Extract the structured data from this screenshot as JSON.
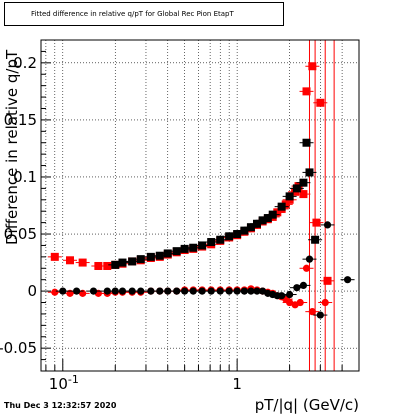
{
  "title": "Fitted difference in relative q/pT for Global Rec Pion EtapT",
  "footer": "Thu Dec  3 12:32:57 2020",
  "chart_data": {
    "type": "scatter",
    "title": "Fitted difference in relative q/pT for Global Rec Pion EtapT",
    "xlabel": "pT/|q| (GeV/c)",
    "ylabel": "Difference in relative q/pT",
    "xscale": "log",
    "xlim": [
      0.075,
      5.0
    ],
    "ylim": [
      -0.07,
      0.22
    ],
    "x_tick_labels": [
      "10^-1",
      "1"
    ],
    "y_ticks": [
      -0.05,
      0,
      0.05,
      0.1,
      0.15,
      0.2
    ],
    "y_tick_labels": [
      "-0.05",
      "0",
      "0.05",
      "0.1",
      "0.15",
      "0.2"
    ],
    "grid": true,
    "colors": {
      "red": "#ff0000",
      "black": "#000000"
    },
    "vertical_lines": {
      "color": "#ff0000",
      "x": [
        2.6,
        2.8,
        3.2,
        3.6
      ]
    },
    "series": [
      {
        "marker": "square",
        "color": "#ff0000",
        "x": [
          0.09,
          0.11,
          0.13,
          0.16,
          0.18,
          0.2,
          0.22,
          0.25,
          0.28,
          0.32,
          0.36,
          0.4,
          0.45,
          0.5,
          0.56,
          0.63,
          0.71,
          0.8,
          0.9,
          1.0,
          1.1,
          1.2,
          1.3,
          1.4,
          1.5,
          1.6,
          1.7,
          1.8,
          1.9,
          2.0,
          2.15,
          2.25,
          2.4,
          2.5,
          2.7,
          2.85,
          3.0,
          3.3
        ],
        "y": [
          0.03,
          0.027,
          0.025,
          0.022,
          0.022,
          0.023,
          0.024,
          0.026,
          0.027,
          0.029,
          0.03,
          0.032,
          0.034,
          0.036,
          0.037,
          0.039,
          0.041,
          0.044,
          0.047,
          0.049,
          0.052,
          0.055,
          0.058,
          0.061,
          0.063,
          0.065,
          0.069,
          0.072,
          0.076,
          0.08,
          0.087,
          0.092,
          0.085,
          0.175,
          0.197,
          0.06,
          0.165,
          0.009
        ]
      },
      {
        "marker": "circle",
        "color": "#ff0000",
        "x": [
          0.09,
          0.11,
          0.13,
          0.16,
          0.18,
          0.2,
          0.22,
          0.25,
          0.28,
          0.32,
          0.36,
          0.4,
          0.45,
          0.5,
          0.56,
          0.63,
          0.71,
          0.8,
          0.9,
          1.0,
          1.1,
          1.2,
          1.3,
          1.4,
          1.5,
          1.6,
          1.7,
          1.8,
          1.9,
          2.0,
          2.15,
          2.3,
          2.5,
          2.7,
          3.2
        ],
        "y": [
          -0.001,
          -0.002,
          -0.002,
          -0.002,
          -0.002,
          -0.001,
          -0.001,
          -0.001,
          -0.001,
          0.0,
          0.0,
          0.0,
          0.0,
          0.001,
          0.001,
          0.001,
          0.001,
          0.001,
          0.001,
          0.001,
          0.001,
          0.002,
          0.001,
          0.0,
          -0.001,
          -0.002,
          -0.004,
          -0.005,
          -0.007,
          -0.01,
          -0.012,
          -0.01,
          0.02,
          -0.018,
          -0.01
        ]
      },
      {
        "marker": "square",
        "color": "#000000",
        "x": [
          0.2,
          0.22,
          0.25,
          0.28,
          0.32,
          0.36,
          0.4,
          0.45,
          0.5,
          0.56,
          0.63,
          0.71,
          0.8,
          0.9,
          1.0,
          1.1,
          1.2,
          1.3,
          1.4,
          1.5,
          1.6,
          1.8,
          2.0,
          2.2,
          2.4,
          2.5,
          2.6,
          2.8
        ],
        "y": [
          0.023,
          0.025,
          0.026,
          0.028,
          0.03,
          0.031,
          0.033,
          0.035,
          0.037,
          0.038,
          0.04,
          0.043,
          0.045,
          0.048,
          0.05,
          0.053,
          0.056,
          0.059,
          0.062,
          0.064,
          0.067,
          0.074,
          0.083,
          0.09,
          0.095,
          0.13,
          0.104,
          0.045
        ]
      },
      {
        "marker": "circle",
        "color": "#000000",
        "x": [
          0.1,
          0.12,
          0.15,
          0.18,
          0.2,
          0.22,
          0.25,
          0.28,
          0.32,
          0.36,
          0.4,
          0.45,
          0.5,
          0.56,
          0.63,
          0.71,
          0.8,
          0.9,
          1.0,
          1.1,
          1.2,
          1.3,
          1.4,
          1.5,
          1.6,
          1.7,
          1.8,
          2.0,
          2.2,
          2.4,
          2.6,
          3.0,
          3.3,
          4.3
        ],
        "y": [
          0.0,
          0.0,
          0.0,
          0.0,
          0.0,
          0.0,
          0.0,
          0.0,
          0.0,
          0.0,
          0.0,
          0.0,
          0.0,
          0.0,
          0.0,
          0.0,
          0.0,
          0.0,
          0.0,
          0.0,
          0.0,
          0.0,
          0.0,
          -0.002,
          -0.003,
          -0.004,
          -0.004,
          -0.003,
          0.003,
          0.005,
          0.028,
          -0.021,
          0.058,
          0.01
        ]
      }
    ]
  }
}
